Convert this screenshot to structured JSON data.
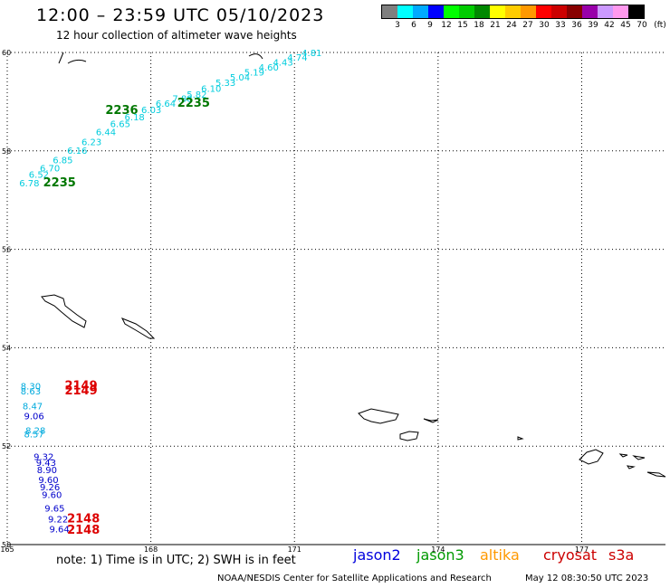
{
  "header": {
    "title": "12:00 – 23:59 UTC 05/10/2023",
    "subtitle": "12 hour collection of altimeter wave heights"
  },
  "legend": {
    "unit": "(ft)",
    "colors": [
      "#7f7f7f",
      "#00ffff",
      "#00aaff",
      "#0000ff",
      "#00ff00",
      "#00cc00",
      "#008800",
      "#ffff00",
      "#ffcc00",
      "#ff9900",
      "#ff0000",
      "#cc0000",
      "#880000",
      "#9900aa",
      "#cc99ff",
      "#ff99ee",
      "#000000"
    ],
    "ticks": [
      "3",
      "6",
      "9",
      "12",
      "15",
      "18",
      "21",
      "24",
      "27",
      "30",
      "33",
      "36",
      "39",
      "42",
      "45",
      "70"
    ]
  },
  "map": {
    "lat_labels": [
      "60",
      "58",
      "56",
      "54",
      "52",
      "50"
    ],
    "lon_labels": [
      "165",
      "168",
      "171",
      "174",
      "177"
    ],
    "tracks": [
      {
        "satellite": "jason3",
        "color": "#00ccdd",
        "values": [
          {
            "lon": 165.25,
            "lat": 57.28,
            "v": "6.78"
          },
          {
            "lon": 165.45,
            "lat": 57.45,
            "v": "6.52"
          },
          {
            "lon": 165.68,
            "lat": 57.58,
            "v": "6.70"
          },
          {
            "lon": 165.95,
            "lat": 57.75,
            "v": "6.85"
          },
          {
            "lon": 166.25,
            "lat": 57.94,
            "v": "6.16"
          },
          {
            "lon": 166.55,
            "lat": 58.12,
            "v": "6.23"
          },
          {
            "lon": 166.85,
            "lat": 58.32,
            "v": "6.44"
          },
          {
            "lon": 167.15,
            "lat": 58.48,
            "v": "6.65"
          },
          {
            "lon": 167.45,
            "lat": 58.62,
            "v": "6.18"
          },
          {
            "lon": 167.8,
            "lat": 58.77,
            "v": "6.03"
          },
          {
            "lon": 168.1,
            "lat": 58.9,
            "v": "6.64"
          },
          {
            "lon": 168.45,
            "lat": 59.0,
            "v": "7.88"
          },
          {
            "lon": 168.75,
            "lat": 59.08,
            "v": "5.82"
          },
          {
            "lon": 169.05,
            "lat": 59.2,
            "v": "6.10"
          },
          {
            "lon": 169.35,
            "lat": 59.32,
            "v": "5.33"
          },
          {
            "lon": 169.65,
            "lat": 59.43,
            "v": "5.04"
          },
          {
            "lon": 169.95,
            "lat": 59.53,
            "v": "5.19"
          },
          {
            "lon": 170.25,
            "lat": 59.63,
            "v": "4.60"
          },
          {
            "lon": 170.55,
            "lat": 59.73,
            "v": "4.43"
          },
          {
            "lon": 170.85,
            "lat": 59.83,
            "v": "4.74"
          },
          {
            "lon": 171.15,
            "lat": 59.93,
            "v": "4.81"
          }
        ]
      },
      {
        "satellite": "jason2",
        "color": "#0000cc",
        "values": [
          {
            "lon": 165.35,
            "lat": 52.55,
            "v": "9.06"
          },
          {
            "lon": 165.55,
            "lat": 51.72,
            "v": "9.32"
          },
          {
            "lon": 165.6,
            "lat": 51.6,
            "v": "9.43"
          },
          {
            "lon": 165.62,
            "lat": 51.45,
            "v": "8.90"
          },
          {
            "lon": 165.65,
            "lat": 51.25,
            "v": "9.60"
          },
          {
            "lon": 165.68,
            "lat": 51.1,
            "v": "9.26"
          },
          {
            "lon": 165.72,
            "lat": 50.95,
            "v": "9.60"
          },
          {
            "lon": 165.78,
            "lat": 50.67,
            "v": "9.65"
          },
          {
            "lon": 165.85,
            "lat": 50.45,
            "v": "9.22"
          },
          {
            "lon": 165.88,
            "lat": 50.25,
            "v": "9.64"
          }
        ]
      },
      {
        "satellite": "jason2-light",
        "color": "#00aadd",
        "values": [
          {
            "lon": 165.28,
            "lat": 53.15,
            "v": "8.30"
          },
          {
            "lon": 165.28,
            "lat": 53.05,
            "v": "8.63"
          },
          {
            "lon": 165.32,
            "lat": 52.75,
            "v": "8.47"
          },
          {
            "lon": 165.38,
            "lat": 52.25,
            "v": "8.28"
          },
          {
            "lon": 165.35,
            "lat": 52.18,
            "v": "8.57"
          }
        ]
      }
    ],
    "time_labels": [
      {
        "lon": 168.55,
        "lat": 58.9,
        "v": "2235",
        "color": "#007700"
      },
      {
        "lon": 167.05,
        "lat": 58.75,
        "v": "2236",
        "color": "#007700"
      },
      {
        "lon": 165.75,
        "lat": 57.28,
        "v": "2235",
        "color": "#007700"
      },
      {
        "lon": 166.2,
        "lat": 53.15,
        "v": "2149",
        "color": "#dd0000"
      },
      {
        "lon": 166.2,
        "lat": 53.05,
        "v": "2149",
        "color": "#dd0000"
      },
      {
        "lon": 166.25,
        "lat": 50.45,
        "v": "2148",
        "color": "#dd0000"
      },
      {
        "lon": 166.25,
        "lat": 50.22,
        "v": "2148",
        "color": "#dd0000"
      }
    ]
  },
  "footer": {
    "note": "note: 1) Time is in UTC; 2) SWH is in feet",
    "satellites": [
      {
        "name": "jason2",
        "color": "#0000dd"
      },
      {
        "name": "jason3",
        "color": "#009900"
      },
      {
        "name": "altika",
        "color": "#ff9900"
      },
      {
        "name": "cryosat",
        "color": "#cc0000"
      },
      {
        "name": "s3a",
        "color": "#cc0000"
      }
    ],
    "credit": "NOAA/NESDIS Center for Satellite Applications and Research",
    "runtime": "May 12 08:30:50 UTC 2023"
  }
}
